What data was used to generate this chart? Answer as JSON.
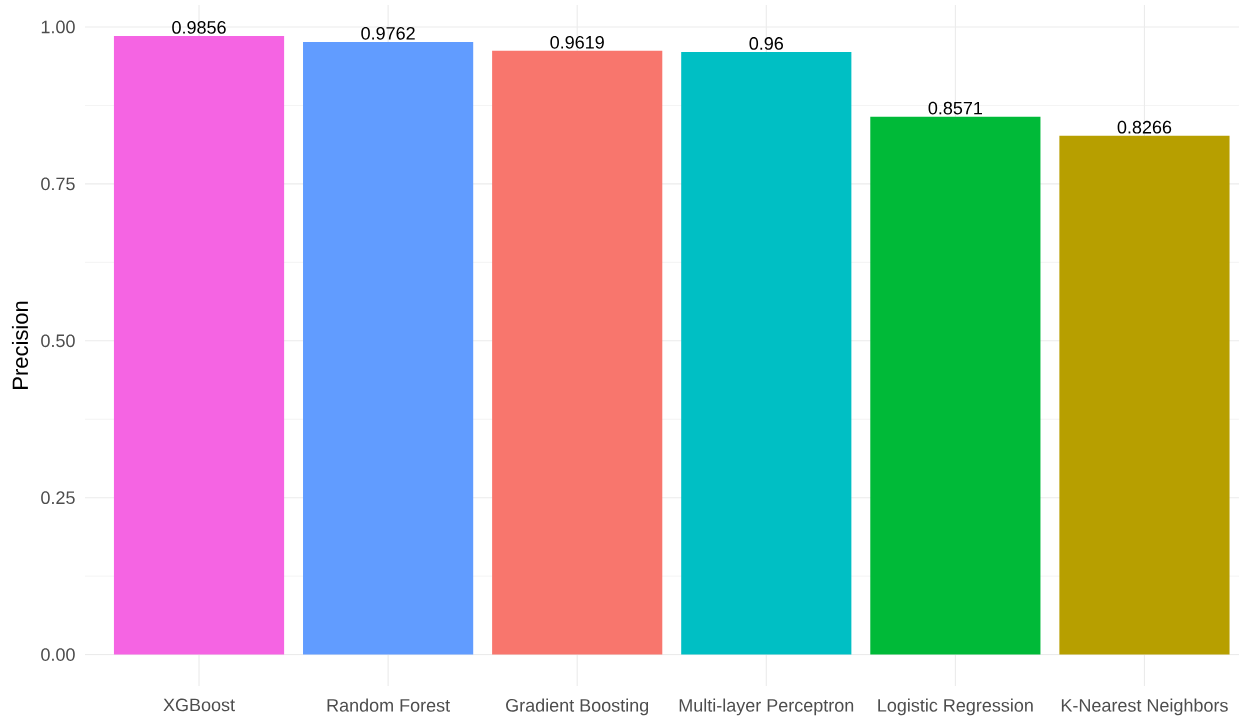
{
  "chart_data": {
    "type": "bar",
    "ylabel": "Precision",
    "categories": [
      "XGBoost",
      "Random Forest",
      "Gradient Boosting",
      "Multi-layer Perceptron",
      "Logistic Regression",
      "K-Nearest Neighbors"
    ],
    "values": [
      0.9856,
      0.9762,
      0.9619,
      0.96,
      0.8571,
      0.8266
    ],
    "colors": [
      "#f564e3",
      "#619cff",
      "#f8766d",
      "#00bfc4",
      "#00ba38",
      "#b79f00"
    ],
    "ylim": [
      -0.05,
      1.035
    ],
    "yticks": [
      {
        "value": 0,
        "label": "0.00"
      },
      0.25,
      {
        "value": 0.5,
        "label": "0.50"
      },
      0.75,
      {
        "value": 1,
        "label": "1.00"
      }
    ],
    "grid": true,
    "data_labels": true
  }
}
